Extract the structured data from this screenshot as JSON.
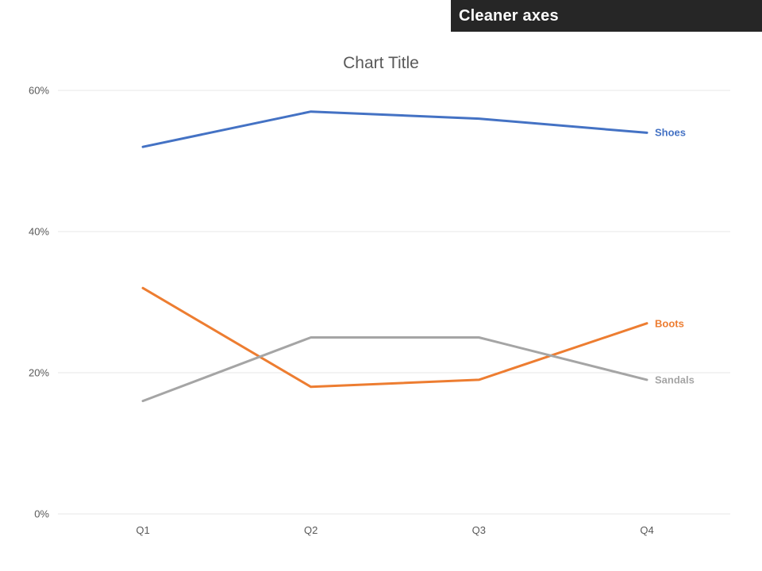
{
  "banner": {
    "title": "Cleaner axes",
    "background": "#262626",
    "text_color": "#ffffff"
  },
  "chart_data": {
    "type": "line",
    "title": "Chart Title",
    "categories": [
      "Q1",
      "Q2",
      "Q3",
      "Q4"
    ],
    "series": [
      {
        "name": "Shoes",
        "values": [
          52,
          57,
          56,
          54
        ],
        "color": "#4472C4"
      },
      {
        "name": "Boots",
        "values": [
          32,
          18,
          19,
          27
        ],
        "color": "#ED7D31"
      },
      {
        "name": "Sandals",
        "values": [
          16,
          25,
          25,
          19
        ],
        "color": "#A5A5A5"
      }
    ],
    "xlabel": "",
    "ylabel": "",
    "ylim": [
      0,
      60
    ],
    "ytick_step": 20,
    "ytick_labels": [
      "0%",
      "20%",
      "40%",
      "60%"
    ],
    "grid": true,
    "legend_position": "end-of-line"
  },
  "colors": {
    "gridline": "#E7E7E7",
    "axis_text": "#595959",
    "title_text": "#595959"
  }
}
